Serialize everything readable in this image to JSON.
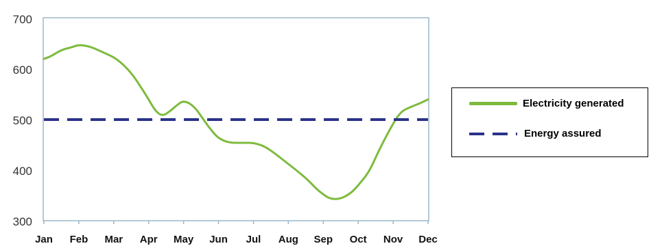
{
  "colors": {
    "electricity": "#7dbb3d",
    "energy_assured": "#2b3289",
    "plot_border": "#9bb7cc"
  },
  "chart_data": {
    "type": "line",
    "title": "",
    "xlabel": "",
    "ylabel": "",
    "ylim": [
      300,
      700
    ],
    "yticks": [
      "700",
      "600",
      "500",
      "400",
      "300"
    ],
    "categories": [
      "Jan",
      "Feb",
      "Mar",
      "Apr",
      "May",
      "Jun",
      "Jul",
      "Aug",
      "Sep",
      "Oct",
      "Nov",
      "Dec"
    ],
    "grid": false,
    "legend_position": "right",
    "series": [
      {
        "name": "Electricity generated",
        "style": "solid",
        "x": [
          1,
          1.2,
          1.5,
          1.8,
          2,
          2.3,
          2.7,
          3.1,
          3.5,
          3.8,
          4,
          4.2,
          4.4,
          4.6,
          4.8,
          5,
          5.3,
          5.6,
          5.8,
          6,
          6.3,
          6.7,
          7,
          7.3,
          7.6,
          8,
          8.3,
          8.6,
          8.8,
          9,
          9.2,
          9.5,
          9.8,
          10,
          10.3,
          10.6,
          10.9,
          11.2,
          11.5,
          11.8,
          12
        ],
        "values": [
          620,
          625,
          638,
          643,
          648,
          645,
          633,
          620,
          593,
          562,
          540,
          516,
          507,
          516,
          528,
          538,
          527,
          497,
          478,
          463,
          454,
          454,
          454,
          448,
          434,
          412,
          396,
          378,
          363,
          352,
          343,
          343,
          355,
          370,
          395,
          440,
          480,
          515,
          525,
          533,
          540
        ]
      },
      {
        "name": "Energy assured",
        "style": "dashed",
        "x": [
          1,
          12
        ],
        "values": [
          500,
          500
        ]
      }
    ]
  }
}
